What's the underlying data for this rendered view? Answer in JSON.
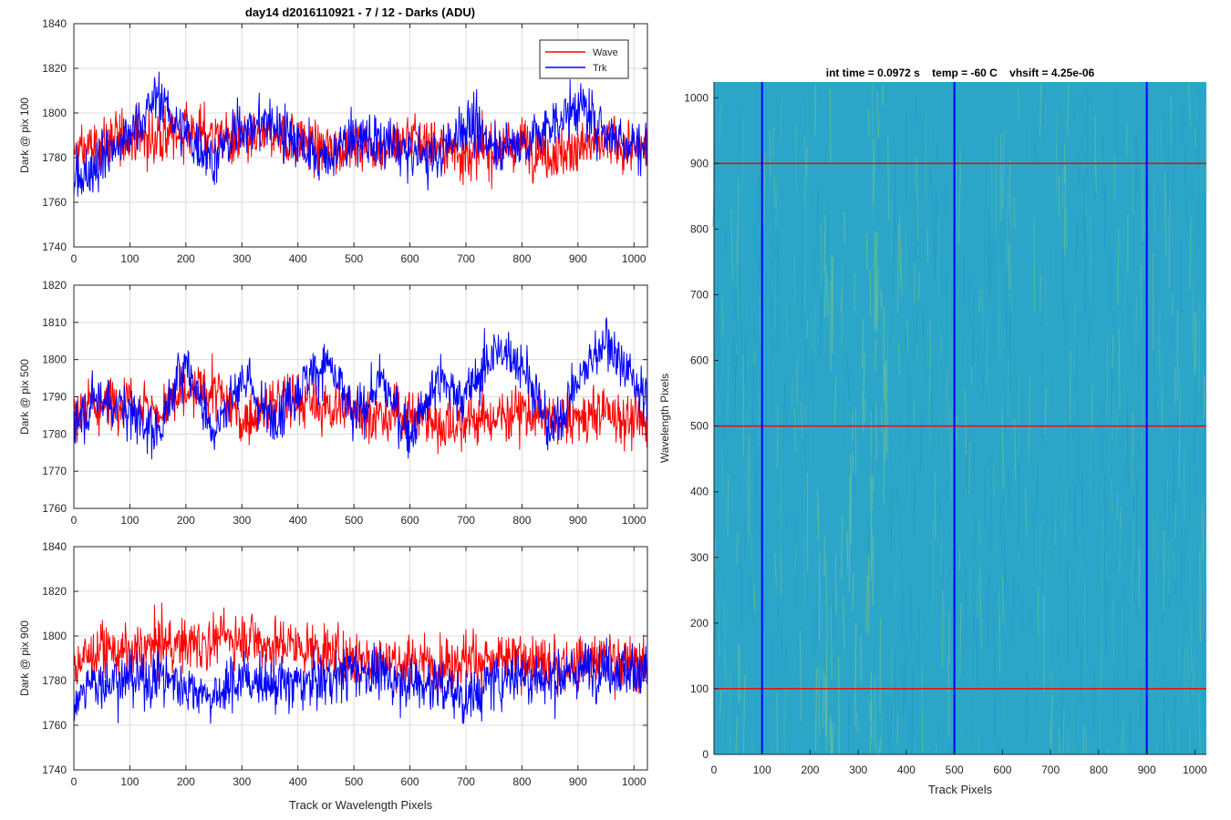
{
  "figure_title": "day14 d2016110921 - 7 / 12 - Darks (ADU)",
  "colors": {
    "wave": "#ff0000",
    "trk": "#0000ff",
    "image_base": "#2ba6c8",
    "image_dark": "#1a78c4",
    "image_bright": "#8fd17a"
  },
  "chart_data": [
    {
      "type": "line",
      "title": "day14 d2016110921 - 7 / 12 - Darks (ADU)",
      "xlabel": "",
      "ylabel": "Dark @ pix 100",
      "xlim": [
        0,
        1024
      ],
      "ylim": [
        1740,
        1840
      ],
      "xticks": [
        0,
        100,
        200,
        300,
        400,
        500,
        600,
        700,
        800,
        900,
        1000
      ],
      "yticks": [
        1740,
        1760,
        1780,
        1800,
        1820,
        1840
      ],
      "grid": true,
      "legend": {
        "placement": "top-right",
        "entries": [
          "Wave",
          "Trk"
        ]
      },
      "series": [
        {
          "name": "Wave",
          "color": "#ff0000",
          "x": [
            0,
            50,
            100,
            150,
            200,
            250,
            300,
            350,
            400,
            450,
            500,
            550,
            600,
            650,
            700,
            750,
            800,
            850,
            900,
            950,
            1023
          ],
          "values": [
            1782,
            1786,
            1790,
            1788,
            1792,
            1790,
            1786,
            1790,
            1788,
            1784,
            1786,
            1784,
            1788,
            1786,
            1782,
            1784,
            1786,
            1782,
            1784,
            1786,
            1784
          ]
        },
        {
          "name": "Trk",
          "color": "#0000ff",
          "x": [
            0,
            50,
            100,
            150,
            200,
            250,
            300,
            350,
            400,
            450,
            500,
            550,
            600,
            650,
            700,
            750,
            800,
            850,
            900,
            950,
            1023
          ],
          "values": [
            1768,
            1780,
            1790,
            1808,
            1790,
            1780,
            1794,
            1796,
            1788,
            1778,
            1790,
            1786,
            1782,
            1780,
            1796,
            1786,
            1786,
            1794,
            1804,
            1792,
            1784
          ]
        }
      ]
    },
    {
      "type": "line",
      "ylabel": "Dark @ pix 500",
      "xlim": [
        0,
        1024
      ],
      "ylim": [
        1760,
        1820
      ],
      "xticks": [
        0,
        100,
        200,
        300,
        400,
        500,
        600,
        700,
        800,
        900,
        1000
      ],
      "yticks": [
        1760,
        1770,
        1780,
        1790,
        1800,
        1810,
        1820
      ],
      "grid": true,
      "series": [
        {
          "name": "Wave",
          "color": "#ff0000",
          "x": [
            0,
            50,
            100,
            150,
            200,
            250,
            300,
            350,
            400,
            450,
            500,
            550,
            600,
            650,
            700,
            750,
            800,
            850,
            900,
            950,
            1023
          ],
          "values": [
            1786,
            1788,
            1790,
            1786,
            1790,
            1792,
            1784,
            1788,
            1790,
            1786,
            1788,
            1784,
            1786,
            1782,
            1784,
            1784,
            1786,
            1784,
            1784,
            1786,
            1782
          ]
        },
        {
          "name": "Trk",
          "color": "#0000ff",
          "x": [
            0,
            50,
            100,
            150,
            200,
            250,
            300,
            350,
            400,
            450,
            500,
            550,
            600,
            650,
            700,
            750,
            800,
            850,
            900,
            950,
            1023
          ],
          "values": [
            1784,
            1790,
            1786,
            1780,
            1800,
            1780,
            1796,
            1784,
            1792,
            1800,
            1784,
            1794,
            1780,
            1794,
            1790,
            1802,
            1800,
            1780,
            1794,
            1806,
            1788
          ]
        }
      ]
    },
    {
      "type": "line",
      "xlabel": "Track or Wavelength Pixels",
      "ylabel": "Dark @ pix 900",
      "xlim": [
        0,
        1024
      ],
      "ylim": [
        1740,
        1840
      ],
      "xticks": [
        0,
        100,
        200,
        300,
        400,
        500,
        600,
        700,
        800,
        900,
        1000
      ],
      "yticks": [
        1740,
        1760,
        1780,
        1800,
        1820,
        1840
      ],
      "grid": true,
      "series": [
        {
          "name": "Wave",
          "color": "#ff0000",
          "x": [
            0,
            50,
            100,
            150,
            200,
            250,
            300,
            350,
            400,
            450,
            500,
            550,
            600,
            650,
            700,
            750,
            800,
            850,
            900,
            950,
            1023
          ],
          "values": [
            1788,
            1794,
            1792,
            1796,
            1796,
            1798,
            1800,
            1796,
            1796,
            1792,
            1790,
            1790,
            1788,
            1788,
            1790,
            1788,
            1790,
            1786,
            1788,
            1790,
            1786
          ]
        },
        {
          "name": "Trk",
          "color": "#0000ff",
          "x": [
            0,
            50,
            100,
            150,
            200,
            250,
            300,
            350,
            400,
            450,
            500,
            550,
            600,
            650,
            700,
            750,
            800,
            850,
            900,
            950,
            1023
          ],
          "values": [
            1772,
            1780,
            1780,
            1782,
            1778,
            1772,
            1782,
            1778,
            1778,
            1780,
            1786,
            1782,
            1780,
            1778,
            1772,
            1780,
            1784,
            1780,
            1784,
            1786,
            1784
          ]
        }
      ]
    },
    {
      "type": "heatmap",
      "title": "int time = 0.0972 s    temp = -60 C    vhsift = 4.25e-06",
      "xlabel": "Track Pixels",
      "ylabel": "Wavelength Pixels",
      "xlim": [
        0,
        1024
      ],
      "ylim": [
        0,
        1024
      ],
      "xticks": [
        0,
        100,
        200,
        300,
        400,
        500,
        600,
        700,
        800,
        900,
        1000
      ],
      "yticks": [
        0,
        100,
        200,
        300,
        400,
        500,
        600,
        700,
        800,
        900,
        1000
      ],
      "vertical_markers": {
        "color": "#0000ff",
        "x": [
          100,
          500,
          900
        ]
      },
      "horizontal_markers": {
        "color": "#ff0000",
        "y": [
          100,
          500,
          900
        ]
      }
    }
  ]
}
